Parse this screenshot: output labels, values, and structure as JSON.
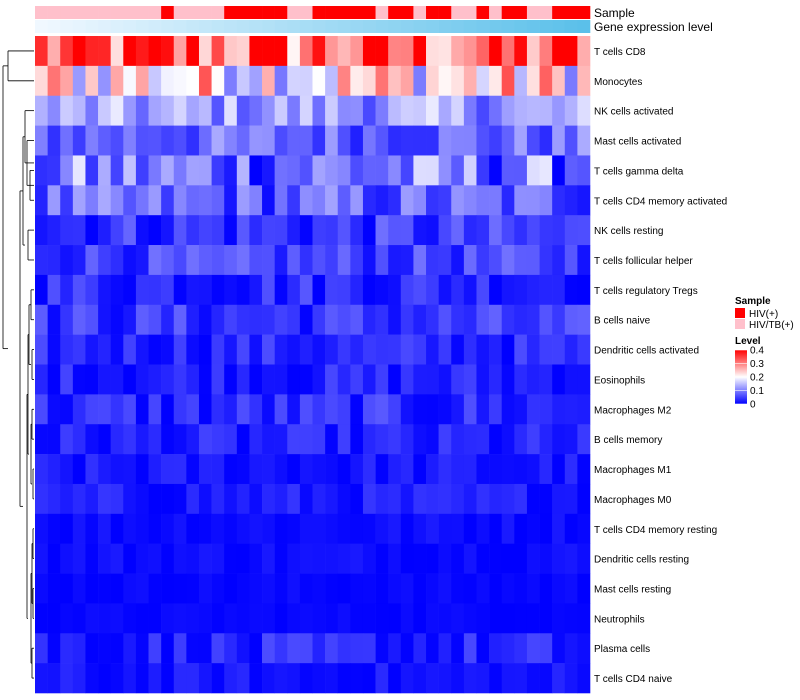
{
  "chart_data": {
    "type": "heatmap",
    "title": "",
    "annotation_tracks": [
      {
        "name": "Sample",
        "type": "categorical"
      },
      {
        "name": "Gene expression level",
        "type": "continuous"
      }
    ],
    "rows": [
      "T cells CD8",
      "Monocytes",
      "NK cells activated",
      "Mast cells activated",
      "T cells gamma delta",
      "T cells CD4 memory activated",
      "NK cells resting",
      "T cells follicular helper",
      "T cells regulatory  Tregs",
      "B cells naive",
      "Dendritic cells activated",
      "Eosinophils",
      "Macrophages M2",
      "B cells memory",
      "Macrophages M1",
      "Macrophages M0",
      "T cells CD4 memory resting",
      "Dendritic cells resting",
      "Mast cells resting",
      "Neutrophils",
      "Plasma cells",
      "T cells CD4 naive"
    ],
    "n_samples": 44,
    "sample_groups": [
      1,
      1,
      1,
      1,
      1,
      1,
      1,
      1,
      1,
      1,
      0,
      1,
      1,
      1,
      1,
      0,
      0,
      0,
      0,
      0,
      1,
      1,
      0,
      0,
      0,
      0,
      0,
      1,
      0,
      0,
      1,
      0,
      0,
      1,
      1,
      0,
      1,
      0,
      0,
      1,
      1,
      0,
      0,
      0
    ],
    "value_range": [
      0,
      0.4
    ],
    "mean_levels": [
      0.32,
      0.22,
      0.12,
      0.08,
      0.09,
      0.07,
      0.04,
      0.05,
      0.035,
      0.04,
      0.03,
      0.025,
      0.03,
      0.02,
      0.015,
      0.02,
      0.01,
      0.01,
      0.005,
      0.005,
      0.02,
      0.01
    ],
    "variation": [
      0.09,
      0.08,
      0.04,
      0.035,
      0.06,
      0.04,
      0.03,
      0.025,
      0.025,
      0.025,
      0.02,
      0.02,
      0.025,
      0.02,
      0.015,
      0.015,
      0.008,
      0.008,
      0.005,
      0.004,
      0.025,
      0.015
    ],
    "legend": {
      "sample": {
        "title": "Sample",
        "entries": [
          {
            "label": "HIV(+)",
            "color": "#ff0000"
          },
          {
            "label": "HIV/TB(+)",
            "color": "#ffc0cb"
          }
        ]
      },
      "level": {
        "title": "Level",
        "ticks": [
          0.4,
          0.3,
          0.2,
          0.1,
          0
        ],
        "tick_labels": [
          "0.4",
          "0.3",
          "0.2",
          "0.1",
          "0"
        ]
      }
    },
    "colors": {
      "low": "#0000ff",
      "mid": "#ffffff",
      "high": "#ff0000",
      "expr_low": "#f0f8ff",
      "expr_high": "#5bc0ea",
      "dendrogram": "#000000"
    }
  }
}
